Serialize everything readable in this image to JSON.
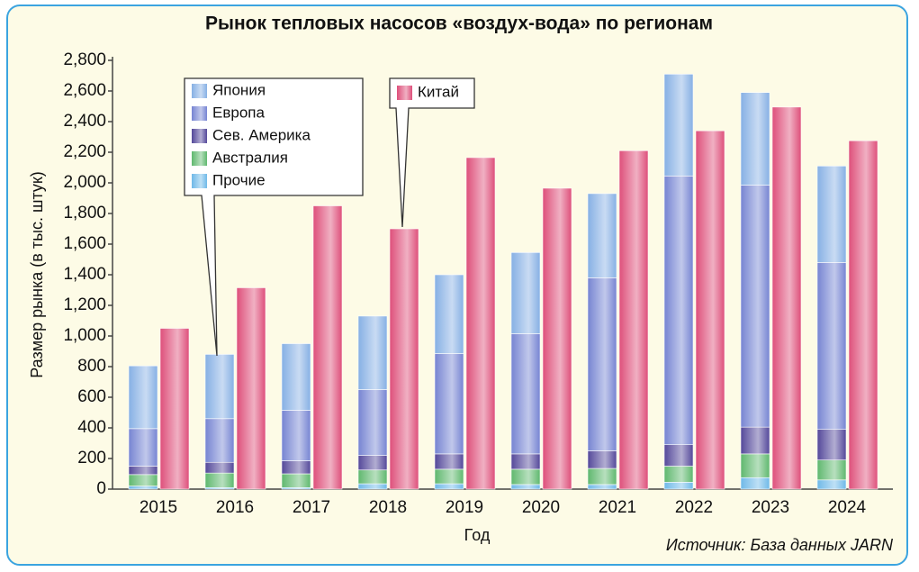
{
  "chart_data": {
    "type": "bar",
    "title": "Рынок тепловых насосов «воздух-вода» по регионам",
    "x_label": "Год",
    "y_label": "Размер рынка (в тыс. штук)",
    "source": "Источник: База данных JARN",
    "categories": [
      "2015",
      "2016",
      "2017",
      "2018",
      "2019",
      "2020",
      "2021",
      "2022",
      "2023",
      "2024"
    ],
    "ylim": [
      0,
      2800
    ],
    "yticks": [
      0,
      200,
      400,
      600,
      800,
      {
        "value": 1000,
        "label": "1,000"
      },
      {
        "value": 1200,
        "label": "1,200"
      },
      {
        "value": 1400,
        "label": "1,400"
      },
      {
        "value": 1600,
        "label": "1,600"
      },
      {
        "value": 1800,
        "label": "1,800"
      },
      {
        "value": 2000,
        "label": "2,000"
      },
      {
        "value": 2200,
        "label": "2,200"
      },
      {
        "value": 2400,
        "label": "2,400"
      },
      {
        "value": 2600,
        "label": "2,600"
      },
      {
        "value": 2800,
        "label": "2,800"
      }
    ],
    "series": [
      {
        "name": "Прочие",
        "color": "#6fb9e8",
        "stack": "world",
        "values": [
          20,
          10,
          10,
          35,
          35,
          30,
          30,
          45,
          75,
          60
        ]
      },
      {
        "name": "Австралия",
        "color": "#5fb86e",
        "stack": "world",
        "values": [
          75,
          95,
          90,
          90,
          95,
          100,
          105,
          105,
          155,
          130
        ]
      },
      {
        "name": "Сев. Америка",
        "color": "#54489a",
        "stack": "world",
        "values": [
          55,
          70,
          85,
          95,
          100,
          100,
          115,
          140,
          175,
          200
        ]
      },
      {
        "name": "Европа",
        "color": "#7684d2",
        "stack": "world",
        "values": [
          245,
          285,
          330,
          430,
          655,
          785,
          1130,
          1755,
          1580,
          1090
        ]
      },
      {
        "name": "Япония",
        "color": "#86b0e4",
        "stack": "world",
        "values": [
          410,
          420,
          435,
          480,
          515,
          530,
          550,
          665,
          605,
          630
        ]
      },
      {
        "name": "Китай",
        "color": "#de4f7a",
        "stack": "china",
        "values": [
          1050,
          1315,
          1850,
          1700,
          2165,
          1965,
          2210,
          2340,
          2495,
          2275
        ]
      }
    ]
  }
}
